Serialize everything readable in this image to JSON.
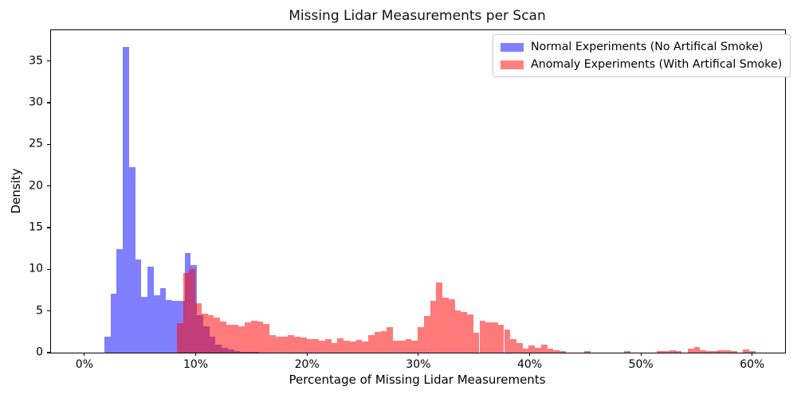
{
  "title": "Missing Lidar Measurements per Scan",
  "chart_data": {
    "type": "bar",
    "subtype": "overlapping-histograms",
    "title": "Missing Lidar Measurements per Scan",
    "xlabel": "Percentage of Missing Lidar Measurements",
    "ylabel": "Density",
    "xlim": [
      -3.0,
      62.95
    ],
    "ylim": [
      0,
      38.7
    ],
    "grid": false,
    "legend_position": "upper right",
    "xticks": [
      {
        "value": 0,
        "label": "0%"
      },
      {
        "value": 10,
        "label": "10%"
      },
      {
        "value": 20,
        "label": "20%"
      },
      {
        "value": 30,
        "label": "30%"
      },
      {
        "value": 40,
        "label": "40%"
      },
      {
        "value": 50,
        "label": "50%"
      },
      {
        "value": 60,
        "label": "60%"
      }
    ],
    "yticks": [
      {
        "value": 0,
        "label": "0"
      },
      {
        "value": 5,
        "label": "5"
      },
      {
        "value": 10,
        "label": "10"
      },
      {
        "value": 15,
        "label": "15"
      },
      {
        "value": 20,
        "label": "20"
      },
      {
        "value": 25,
        "label": "25"
      },
      {
        "value": 30,
        "label": "30"
      },
      {
        "value": 35,
        "label": "35"
      }
    ],
    "colors": {
      "normal_fill": "rgba(0,0,255,0.5)",
      "normal_flat_hex": "#8080ff",
      "anomaly_fill": "rgba(255,0,0,0.52)",
      "anomaly_flat_hex": "#ff8080",
      "overlap_hex": "#bf4080",
      "axis": "#000000",
      "legend_border": "#cccccc"
    },
    "series": [
      {
        "name": "Normal Experiments (No Artifical Smoke)",
        "fill": "rgba(0,0,255,0.5)",
        "bin_width": 0.555,
        "bars": [
          [
            1.79,
            1.9
          ],
          [
            2.35,
            7.1
          ],
          [
            2.9,
            12.4
          ],
          [
            3.46,
            36.7
          ],
          [
            4.01,
            22.3
          ],
          [
            4.57,
            11.2
          ],
          [
            5.12,
            6.7
          ],
          [
            5.68,
            10.3
          ],
          [
            6.23,
            6.9
          ],
          [
            6.79,
            7.7
          ],
          [
            7.34,
            6.3
          ],
          [
            7.9,
            6.2
          ],
          [
            8.45,
            6.2
          ],
          [
            9.01,
            11.9
          ],
          [
            9.56,
            10.5
          ],
          [
            10.12,
            4.5
          ],
          [
            10.67,
            3.2
          ],
          [
            11.23,
            1.9
          ],
          [
            11.78,
            1.0
          ],
          [
            12.34,
            0.6
          ],
          [
            12.89,
            0.35
          ],
          [
            13.45,
            0.2
          ],
          [
            14.0,
            0.12
          ],
          [
            14.56,
            0.1
          ],
          [
            15.11,
            0.08
          ]
        ]
      },
      {
        "name": "Anomaly Experiments (With Artifical Smoke)",
        "fill": "rgba(255,0,0,0.52)",
        "bin_width": 0.555,
        "bars": [
          [
            8.3,
            3.5
          ],
          [
            8.86,
            9.6
          ],
          [
            9.41,
            10.05
          ],
          [
            9.97,
            5.9
          ],
          [
            10.52,
            4.65
          ],
          [
            11.08,
            4.5
          ],
          [
            11.63,
            4.2
          ],
          [
            12.19,
            3.7
          ],
          [
            12.74,
            3.3
          ],
          [
            13.3,
            3.35
          ],
          [
            13.85,
            3.2
          ],
          [
            14.41,
            3.65
          ],
          [
            14.96,
            3.8
          ],
          [
            15.52,
            3.75
          ],
          [
            16.07,
            3.45
          ],
          [
            16.63,
            2.15
          ],
          [
            17.18,
            1.95
          ],
          [
            17.74,
            1.95
          ],
          [
            18.29,
            2.15
          ],
          [
            18.85,
            1.95
          ],
          [
            19.4,
            1.8
          ],
          [
            19.96,
            1.6
          ],
          [
            20.51,
            1.6
          ],
          [
            21.07,
            1.4
          ],
          [
            21.62,
            1.6
          ],
          [
            22.18,
            1.15
          ],
          [
            22.73,
            1.7
          ],
          [
            23.29,
            1.45
          ],
          [
            23.84,
            1.3
          ],
          [
            24.4,
            1.5
          ],
          [
            24.95,
            1.3
          ],
          [
            25.51,
            2.1
          ],
          [
            26.06,
            2.45
          ],
          [
            26.62,
            2.55
          ],
          [
            27.17,
            3.05
          ],
          [
            27.73,
            1.4
          ],
          [
            28.28,
            1.4
          ],
          [
            28.84,
            1.6
          ],
          [
            29.39,
            1.4
          ],
          [
            29.95,
            3.05
          ],
          [
            30.5,
            4.4
          ],
          [
            31.06,
            6.25
          ],
          [
            31.61,
            8.4
          ],
          [
            32.16,
            6.55
          ],
          [
            32.72,
            6.45
          ],
          [
            33.27,
            5.1
          ],
          [
            33.83,
            4.9
          ],
          [
            34.38,
            4.6
          ],
          [
            34.93,
            2.4
          ],
          [
            35.49,
            3.85
          ],
          [
            36.04,
            3.6
          ],
          [
            36.6,
            3.6
          ],
          [
            37.15,
            3.35
          ],
          [
            37.71,
            2.8
          ],
          [
            38.26,
            1.6
          ],
          [
            38.81,
            1.15
          ],
          [
            39.37,
            0.45
          ],
          [
            39.92,
            0.85
          ],
          [
            40.48,
            0.6
          ],
          [
            41.03,
            0.95
          ],
          [
            41.58,
            0.45
          ],
          [
            42.14,
            0.25
          ],
          [
            42.69,
            0.15
          ],
          [
            44.91,
            0.15
          ],
          [
            48.52,
            0.15
          ],
          [
            51.44,
            0.15
          ],
          [
            51.99,
            0.2
          ],
          [
            52.55,
            0.25
          ],
          [
            53.1,
            0.15
          ],
          [
            54.21,
            0.5
          ],
          [
            54.76,
            0.65
          ],
          [
            55.31,
            0.25
          ],
          [
            55.87,
            0.15
          ],
          [
            56.42,
            0.15
          ],
          [
            56.97,
            0.25
          ],
          [
            57.53,
            0.25
          ],
          [
            58.08,
            0.15
          ],
          [
            59.19,
            0.4
          ],
          [
            59.74,
            0.15
          ]
        ]
      }
    ]
  }
}
